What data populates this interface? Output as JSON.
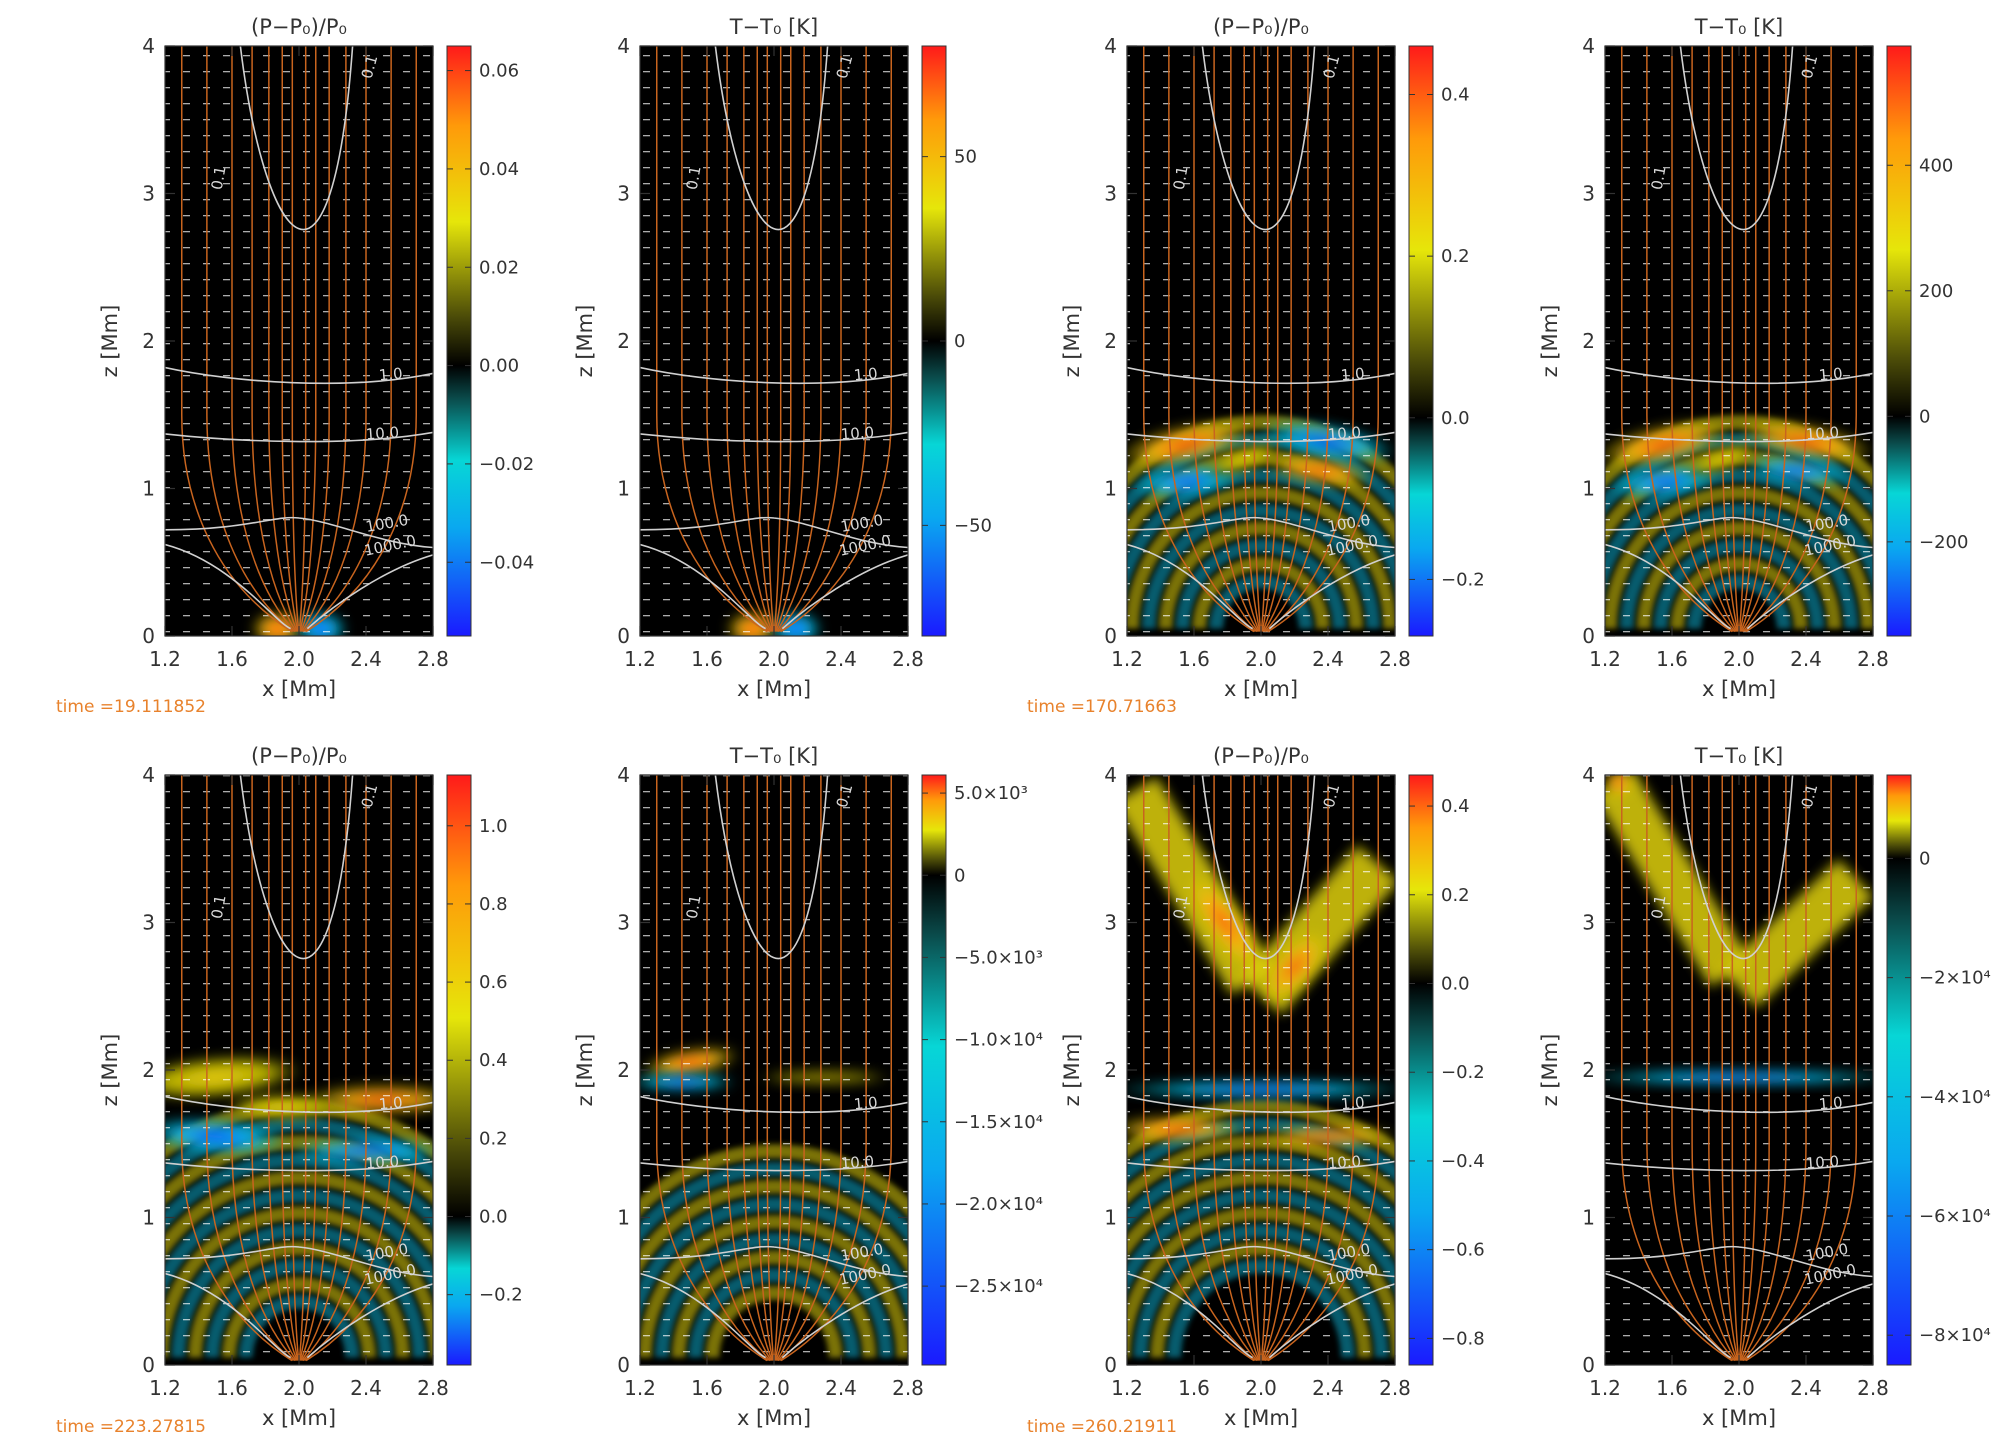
{
  "figure": {
    "time_labels": [
      "time =19.111852",
      "time =170.71663",
      "time =223.27815",
      "time =260.21911"
    ]
  },
  "chart_data": [
    {
      "type": "heatmap",
      "panel": 1,
      "title": "(P−P₀)/P₀",
      "xlabel": "x [Mm]",
      "ylabel": "z [Mm]",
      "xlim": [
        1.2,
        2.8
      ],
      "ylim": [
        0,
        4
      ],
      "x_ticks": [
        "1.2",
        "1.6",
        "2.0",
        "2.4",
        "2.8"
      ],
      "y_ticks": [
        "0",
        "1",
        "2",
        "3",
        "4"
      ],
      "colorbar": {
        "range": [
          -0.055,
          0.065
        ],
        "ticks": [
          {
            "v": 0.06,
            "label": "0.06"
          },
          {
            "v": 0.04,
            "label": "0.04"
          },
          {
            "v": 0.02,
            "label": "0.02"
          },
          {
            "v": 0.0,
            "label": "0.00"
          },
          {
            "v": -0.02,
            "label": "−0.02"
          },
          {
            "v": -0.04,
            "label": "−0.04"
          }
        ]
      },
      "contour_labels": [
        "0.1",
        "0.1",
        "1.0",
        "10.0",
        "100.0",
        "1000.0"
      ]
    },
    {
      "type": "heatmap",
      "panel": 2,
      "title": "T−T₀ [K]",
      "xlabel": "x [Mm]",
      "ylabel": "z [Mm]",
      "xlim": [
        1.2,
        2.8
      ],
      "ylim": [
        0,
        4
      ],
      "x_ticks": [
        "1.2",
        "1.6",
        "2.0",
        "2.4",
        "2.8"
      ],
      "y_ticks": [
        "0",
        "1",
        "2",
        "3",
        "4"
      ],
      "colorbar": {
        "range": [
          -80,
          80
        ],
        "ticks": [
          {
            "v": 50,
            "label": "50"
          },
          {
            "v": 0,
            "label": "0"
          },
          {
            "v": -50,
            "label": "−50"
          }
        ]
      },
      "contour_labels": [
        "0.1",
        "0.1",
        "1.0",
        "10.0",
        "100.0",
        "1000.0"
      ]
    },
    {
      "type": "heatmap",
      "panel": 3,
      "title": "(P−P₀)/P₀",
      "xlabel": "x [Mm]",
      "ylabel": "z [Mm]",
      "xlim": [
        1.2,
        2.8
      ],
      "ylim": [
        0,
        4
      ],
      "x_ticks": [
        "1.2",
        "1.6",
        "2.0",
        "2.4",
        "2.8"
      ],
      "y_ticks": [
        "0",
        "1",
        "2",
        "3",
        "4"
      ],
      "colorbar": {
        "range": [
          -0.27,
          0.46
        ],
        "ticks": [
          {
            "v": 0.4,
            "label": "0.4"
          },
          {
            "v": 0.2,
            "label": "0.2"
          },
          {
            "v": 0.0,
            "label": "0.0"
          },
          {
            "v": -0.2,
            "label": "−0.2"
          }
        ]
      },
      "contour_labels": [
        "0.1",
        "0.1",
        "1.0",
        "10.0",
        "100.0",
        "1000.0"
      ]
    },
    {
      "type": "heatmap",
      "panel": 4,
      "title": "T−T₀ [K]",
      "xlabel": "x [Mm]",
      "ylabel": "z [Mm]",
      "xlim": [
        1.2,
        2.8
      ],
      "ylim": [
        0,
        4
      ],
      "x_ticks": [
        "1.2",
        "1.6",
        "2.0",
        "2.4",
        "2.8"
      ],
      "y_ticks": [
        "0",
        "1",
        "2",
        "3",
        "4"
      ],
      "colorbar": {
        "range": [
          -350,
          590
        ],
        "ticks": [
          {
            "v": 400,
            "label": "400"
          },
          {
            "v": 200,
            "label": "200"
          },
          {
            "v": 0,
            "label": "0"
          },
          {
            "v": -200,
            "label": "−200"
          }
        ]
      },
      "contour_labels": [
        "0.1",
        "0.1",
        "1.0",
        "10.0",
        "100.0",
        "1000.0"
      ]
    },
    {
      "type": "heatmap",
      "panel": 5,
      "title": "(P−P₀)/P₀",
      "xlabel": "x [Mm]",
      "ylabel": "z [Mm]",
      "xlim": [
        1.2,
        2.8
      ],
      "ylim": [
        0,
        4
      ],
      "x_ticks": [
        "1.2",
        "1.6",
        "2.0",
        "2.4",
        "2.8"
      ],
      "y_ticks": [
        "0",
        "1",
        "2",
        "3",
        "4"
      ],
      "colorbar": {
        "range": [
          -0.38,
          1.13
        ],
        "ticks": [
          {
            "v": 1.0,
            "label": "1.0"
          },
          {
            "v": 0.8,
            "label": "0.8"
          },
          {
            "v": 0.6,
            "label": "0.6"
          },
          {
            "v": 0.4,
            "label": "0.4"
          },
          {
            "v": 0.2,
            "label": "0.2"
          },
          {
            "v": 0.0,
            "label": "0.0"
          },
          {
            "v": -0.2,
            "label": "−0.2"
          }
        ]
      },
      "contour_labels": [
        "0.1",
        "0.1",
        "1.0",
        "10.0",
        "100.0",
        "1000.0"
      ]
    },
    {
      "type": "heatmap",
      "panel": 6,
      "title": "T−T₀ [K]",
      "xlabel": "x [Mm]",
      "ylabel": "z [Mm]",
      "xlim": [
        1.2,
        2.8
      ],
      "ylim": [
        0,
        4
      ],
      "x_ticks": [
        "1.2",
        "1.6",
        "2.0",
        "2.4",
        "2.8"
      ],
      "y_ticks": [
        "0",
        "1",
        "2",
        "3",
        "4"
      ],
      "colorbar": {
        "range": [
          -29800,
          6100
        ],
        "ticks": [
          {
            "v": 5000,
            "label": "5.0×10³"
          },
          {
            "v": 0,
            "label": "0"
          },
          {
            "v": -5000,
            "label": "−5.0×10³"
          },
          {
            "v": -10000,
            "label": "−1.0×10⁴"
          },
          {
            "v": -15000,
            "label": "−1.5×10⁴"
          },
          {
            "v": -20000,
            "label": "−2.0×10⁴"
          },
          {
            "v": -25000,
            "label": "−2.5×10⁴"
          }
        ]
      },
      "contour_labels": [
        "0.1",
        "0.1",
        "1.0",
        "10.0",
        "100.0",
        "1000.0"
      ]
    },
    {
      "type": "heatmap",
      "panel": 7,
      "title": "(P−P₀)/P₀",
      "xlabel": "x [Mm]",
      "ylabel": "z [Mm]",
      "xlim": [
        1.2,
        2.8
      ],
      "ylim": [
        0,
        4
      ],
      "x_ticks": [
        "1.2",
        "1.6",
        "2.0",
        "2.4",
        "2.8"
      ],
      "y_ticks": [
        "0",
        "1",
        "2",
        "3",
        "4"
      ],
      "colorbar": {
        "range": [
          -0.86,
          0.47
        ],
        "ticks": [
          {
            "v": 0.4,
            "label": "0.4"
          },
          {
            "v": 0.2,
            "label": "0.2"
          },
          {
            "v": 0.0,
            "label": "0.0"
          },
          {
            "v": -0.2,
            "label": "−0.2"
          },
          {
            "v": -0.4,
            "label": "−0.4"
          },
          {
            "v": -0.6,
            "label": "−0.6"
          },
          {
            "v": -0.8,
            "label": "−0.8"
          }
        ]
      },
      "contour_labels": [
        "0.1",
        "0.1",
        "1.0",
        "10.0",
        "100.0",
        "1000.0"
      ]
    },
    {
      "type": "heatmap",
      "panel": 8,
      "title": "T−T₀ [K]",
      "xlabel": "x [Mm]",
      "ylabel": "z [Mm]",
      "xlim": [
        1.2,
        2.8
      ],
      "ylim": [
        0,
        4
      ],
      "x_ticks": [
        "1.2",
        "1.6",
        "2.0",
        "2.4",
        "2.8"
      ],
      "y_ticks": [
        "0",
        "1",
        "2",
        "3",
        "4"
      ],
      "colorbar": {
        "range": [
          -85000,
          14000
        ],
        "ticks": [
          {
            "v": 0,
            "label": "0"
          },
          {
            "v": -20000,
            "label": "−2×10⁴"
          },
          {
            "v": -40000,
            "label": "−4×10⁴"
          },
          {
            "v": -60000,
            "label": "−6×10⁴"
          },
          {
            "v": -80000,
            "label": "−8×10⁴"
          }
        ]
      },
      "contour_labels": [
        "0.1",
        "0.1",
        "1.0",
        "10.0",
        "100.0",
        "1000.0"
      ]
    }
  ]
}
